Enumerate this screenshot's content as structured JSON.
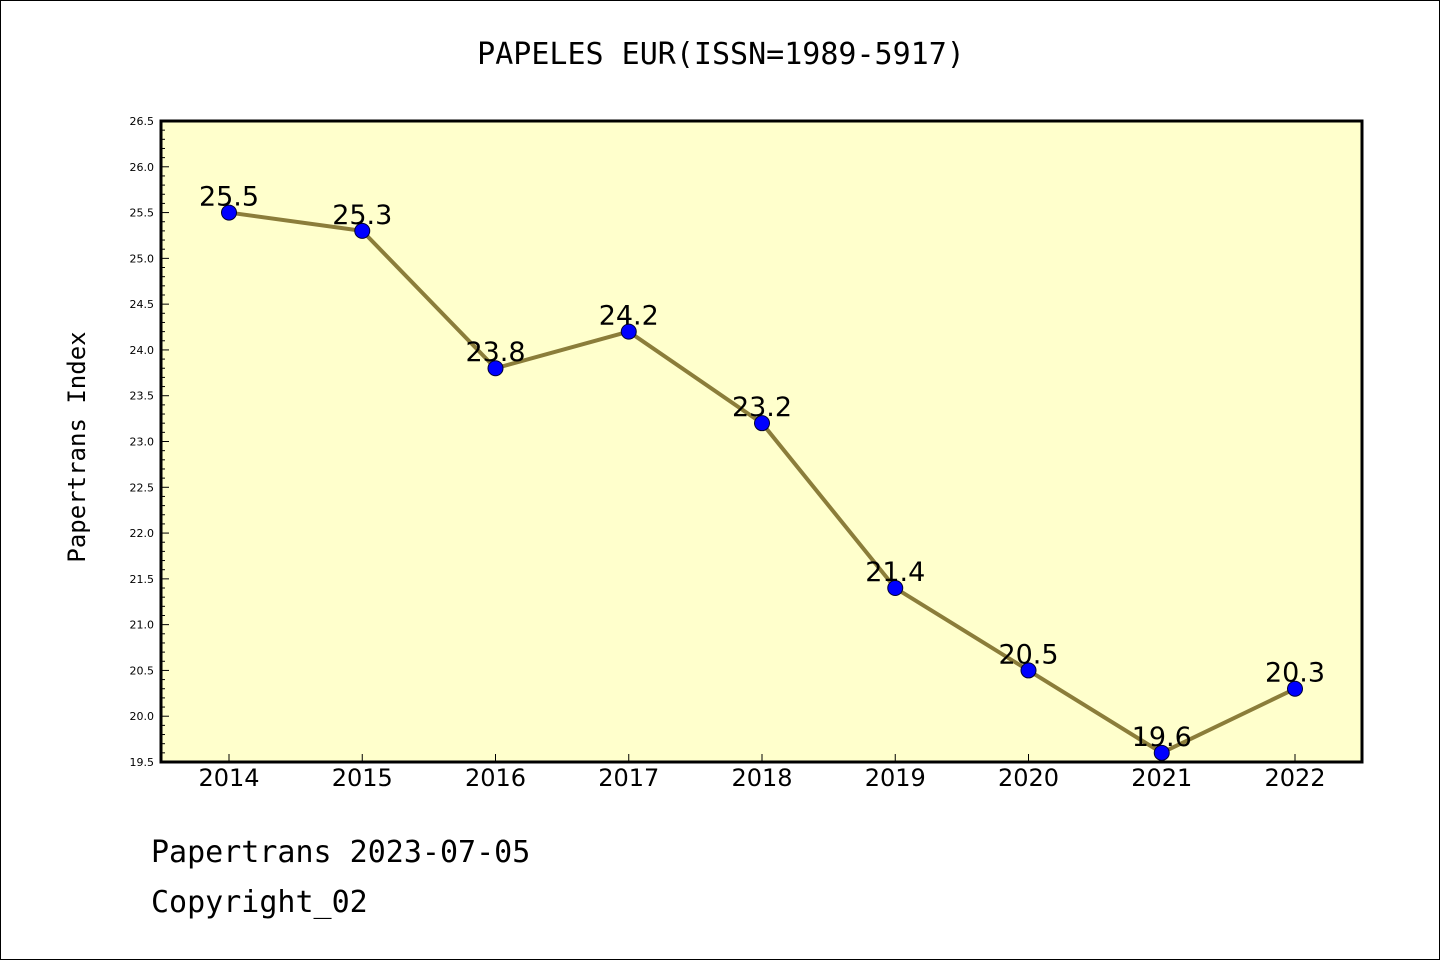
{
  "colors": {
    "plot_background": "#ffffcc",
    "line": "#8b7d3a",
    "marker": "#0000ff",
    "axis": "#000000"
  },
  "footer": {
    "date_line": "Papertrans 2023-07-05",
    "copyright": "Copyright_02"
  },
  "chart_data": {
    "type": "line",
    "title": "PAPELES EUR(ISSN=1989-5917)",
    "xlabel": "",
    "ylabel": "Papertrans Index",
    "categories": [
      "2014",
      "2015",
      "2016",
      "2017",
      "2018",
      "2019",
      "2020",
      "2021",
      "2022"
    ],
    "series": [
      {
        "values": [
          25.5,
          25.3,
          23.8,
          24.2,
          23.2,
          21.4,
          20.5,
          19.6,
          20.3
        ],
        "data_labels": [
          "25.5",
          "25.3",
          "23.8",
          "24.2",
          "23.2",
          "21.4",
          "20.5",
          "19.6",
          "20.3"
        ]
      }
    ],
    "ylim": [
      19.5,
      26.5
    ],
    "yticks": [
      "19.5",
      "20.0",
      "20.5",
      "21.0",
      "21.5",
      "22.0",
      "22.5",
      "23.0",
      "23.5",
      "24.0",
      "24.5",
      "25.0",
      "25.5",
      "26.0",
      "26.5"
    ],
    "grid": false,
    "legend": "none"
  }
}
